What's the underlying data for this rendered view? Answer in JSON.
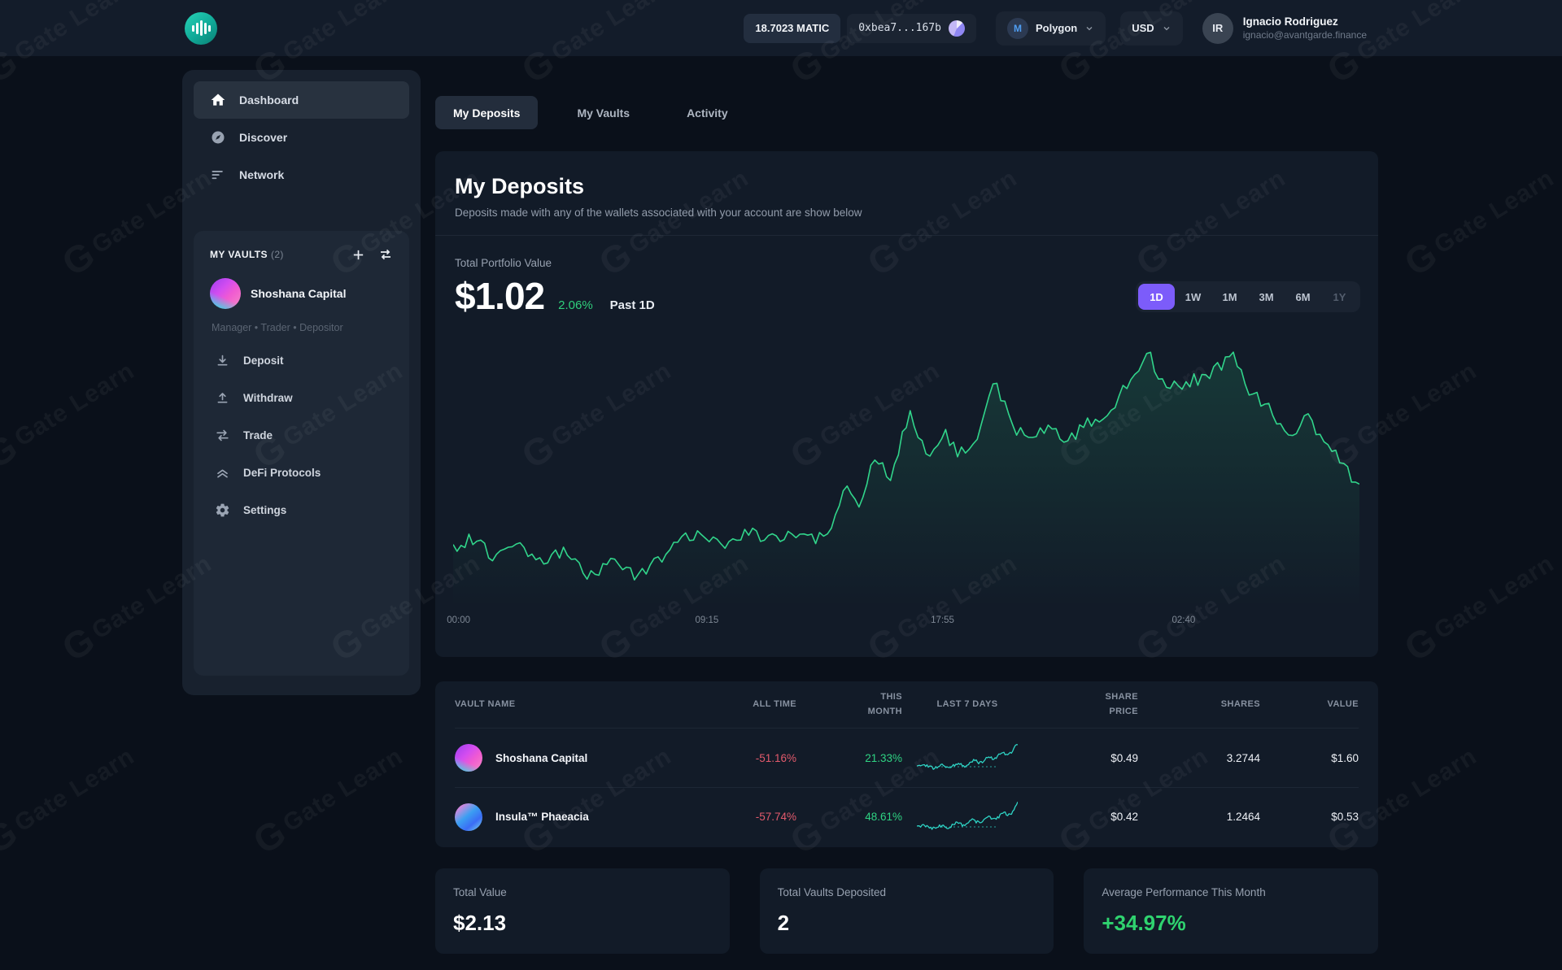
{
  "watermark": {
    "text": "Gate Learn",
    "logo_glyph": "G"
  },
  "topbar": {
    "matic_balance": "18.7023 MATIC",
    "wallet_address": "0xbea7...167b",
    "network": {
      "label": "Polygon",
      "icon_glyph": "M"
    },
    "currency": "USD",
    "user": {
      "initials": "IR",
      "name": "Ignacio Rodriguez",
      "email": "ignacio@avantgarde.finance"
    }
  },
  "sidebar": {
    "nav": [
      {
        "label": "Dashboard",
        "icon": "home-icon",
        "active": true
      },
      {
        "label": "Discover",
        "icon": "compass-icon",
        "active": false
      },
      {
        "label": "Network",
        "icon": "lines-icon",
        "active": false
      }
    ],
    "vaults_panel": {
      "title": "MY VAULTS",
      "count": "(2)",
      "vault_name": "Shoshana Capital",
      "roles": "Manager • Trader • Depositor",
      "actions": [
        {
          "label": "Deposit",
          "icon": "deposit-icon"
        },
        {
          "label": "Withdraw",
          "icon": "withdraw-icon"
        },
        {
          "label": "Trade",
          "icon": "trade-icon"
        },
        {
          "label": "DeFi Protocols",
          "icon": "defi-icon"
        },
        {
          "label": "Settings",
          "icon": "gear-icon"
        }
      ]
    }
  },
  "tabs": [
    {
      "label": "My Deposits",
      "active": true
    },
    {
      "label": "My Vaults",
      "active": false
    },
    {
      "label": "Activity",
      "active": false
    }
  ],
  "deposits_card": {
    "title": "My Deposits",
    "subtitle": "Deposits made with any of the wallets associated with your account are show below",
    "portfolio_label": "Total Portfolio Value",
    "portfolio_value": "$1.02",
    "change_pct": "2.06%",
    "period_label": "Past 1D",
    "ranges": [
      "1D",
      "1W",
      "1M",
      "3M",
      "6M",
      "1Y"
    ],
    "active_range": "1D"
  },
  "table": {
    "headers": [
      "VAULT NAME",
      "ALL TIME",
      "THIS MONTH",
      "LAST 7 DAYS",
      "SHARE PRICE",
      "SHARES",
      "VALUE"
    ],
    "rows": [
      {
        "name": "Shoshana Capital",
        "all_time": "-51.16%",
        "this_month": "21.33%",
        "share_price": "$0.49",
        "shares": "3.2744",
        "value": "$1.60"
      },
      {
        "name": "Insula™ Phaeacia",
        "all_time": "-57.74%",
        "this_month": "48.61%",
        "share_price": "$0.42",
        "shares": "1.2464",
        "value": "$0.53"
      }
    ]
  },
  "stats": [
    {
      "label": "Total Value",
      "value": "$2.13"
    },
    {
      "label": "Total Vaults Deposited",
      "value": "2"
    },
    {
      "label": "Average Performance This Month",
      "value": "+34.97%"
    }
  ],
  "colors": {
    "accent_purple": "#7c5cfa",
    "positive_green": "#2fd383",
    "negative_red": "#e25a6c",
    "chart_line_green": "#31d58b",
    "sparkline_teal": "#2ed3c4",
    "card_bg": "#121b28",
    "page_bg": "#0a101a"
  },
  "chart_data": [
    {
      "id": "portfolio-1d",
      "type": "line",
      "title": "Total Portfolio Value — Past 1D",
      "current_value_usd": 1.02,
      "change_pct_1d": 2.06,
      "x_ticks": [
        "00:00",
        "09:15",
        "17:55",
        "02:40"
      ],
      "x_tick_positions": [
        0.006,
        0.28,
        0.54,
        0.806
      ],
      "y_axis_note": "points are [x 0-1 across day, y 0-1 normalized, 0=chart top/high, 1=low]",
      "points": [
        [
          0.0,
          0.77
        ],
        [
          0.02,
          0.735
        ],
        [
          0.045,
          0.8
        ],
        [
          0.07,
          0.74
        ],
        [
          0.095,
          0.83
        ],
        [
          0.12,
          0.78
        ],
        [
          0.15,
          0.885
        ],
        [
          0.175,
          0.815
        ],
        [
          0.2,
          0.875
        ],
        [
          0.225,
          0.82
        ],
        [
          0.25,
          0.745
        ],
        [
          0.275,
          0.715
        ],
        [
          0.3,
          0.755
        ],
        [
          0.325,
          0.7
        ],
        [
          0.35,
          0.74
        ],
        [
          0.375,
          0.715
        ],
        [
          0.4,
          0.735
        ],
        [
          0.418,
          0.695
        ],
        [
          0.432,
          0.54
        ],
        [
          0.448,
          0.6
        ],
        [
          0.465,
          0.42
        ],
        [
          0.482,
          0.5
        ],
        [
          0.505,
          0.235
        ],
        [
          0.522,
          0.42
        ],
        [
          0.54,
          0.32
        ],
        [
          0.558,
          0.4
        ],
        [
          0.578,
          0.35
        ],
        [
          0.598,
          0.135
        ],
        [
          0.618,
          0.3
        ],
        [
          0.638,
          0.35
        ],
        [
          0.658,
          0.305
        ],
        [
          0.678,
          0.36
        ],
        [
          0.7,
          0.285
        ],
        [
          0.722,
          0.27
        ],
        [
          0.745,
          0.13
        ],
        [
          0.768,
          0.015
        ],
        [
          0.785,
          0.16
        ],
        [
          0.805,
          0.135
        ],
        [
          0.828,
          0.11
        ],
        [
          0.86,
          0.03
        ],
        [
          0.88,
          0.17
        ],
        [
          0.897,
          0.22
        ],
        [
          0.92,
          0.335
        ],
        [
          0.942,
          0.27
        ],
        [
          0.965,
          0.36
        ],
        [
          0.985,
          0.47
        ],
        [
          1.0,
          0.53
        ]
      ]
    },
    {
      "id": "spark-shoshana-7d",
      "type": "line",
      "title": "Shoshana Capital — last 7 days",
      "points": [
        [
          0,
          0.78
        ],
        [
          0.08,
          0.72
        ],
        [
          0.16,
          0.82
        ],
        [
          0.24,
          0.73
        ],
        [
          0.32,
          0.8
        ],
        [
          0.4,
          0.7
        ],
        [
          0.48,
          0.76
        ],
        [
          0.56,
          0.58
        ],
        [
          0.63,
          0.66
        ],
        [
          0.7,
          0.48
        ],
        [
          0.77,
          0.55
        ],
        [
          0.84,
          0.34
        ],
        [
          0.92,
          0.4
        ],
        [
          1.0,
          0.06
        ]
      ]
    },
    {
      "id": "spark-insula-7d",
      "type": "line",
      "title": "Insula™ Phaeacia — last 7 days",
      "points": [
        [
          0,
          0.8
        ],
        [
          0.07,
          0.74
        ],
        [
          0.15,
          0.84
        ],
        [
          0.23,
          0.76
        ],
        [
          0.31,
          0.82
        ],
        [
          0.39,
          0.68
        ],
        [
          0.47,
          0.76
        ],
        [
          0.55,
          0.6
        ],
        [
          0.63,
          0.68
        ],
        [
          0.71,
          0.5
        ],
        [
          0.78,
          0.58
        ],
        [
          0.85,
          0.36
        ],
        [
          0.93,
          0.44
        ],
        [
          1.0,
          0.08
        ]
      ]
    }
  ]
}
